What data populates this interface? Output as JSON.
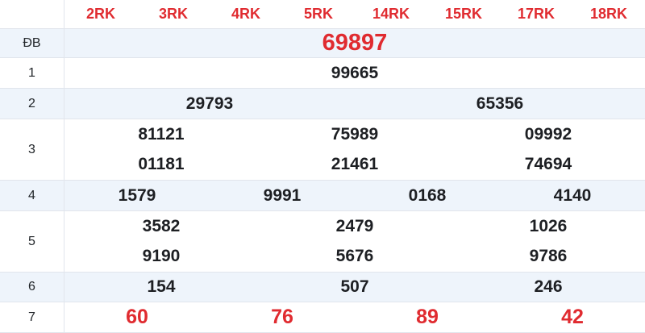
{
  "colors": {
    "accent_red": "#e02b30",
    "row_alt_bg": "#eef4fb",
    "border": "#e1e5ec",
    "text": "#1d1f23"
  },
  "header": {
    "columns": [
      "2RK",
      "3RK",
      "4RK",
      "5RK",
      "14RK",
      "15RK",
      "17RK",
      "18RK"
    ]
  },
  "rows": [
    {
      "label": "ĐB",
      "lines": [
        [
          "69897"
        ]
      ]
    },
    {
      "label": "1",
      "lines": [
        [
          "99665"
        ]
      ]
    },
    {
      "label": "2",
      "lines": [
        [
          "29793",
          "65356"
        ]
      ]
    },
    {
      "label": "3",
      "lines": [
        [
          "81121",
          "75989",
          "09992"
        ],
        [
          "01181",
          "21461",
          "74694"
        ]
      ]
    },
    {
      "label": "4",
      "lines": [
        [
          "1579",
          "9991",
          "0168",
          "4140"
        ]
      ]
    },
    {
      "label": "5",
      "lines": [
        [
          "3582",
          "2479",
          "1026"
        ],
        [
          "9190",
          "5676",
          "9786"
        ]
      ]
    },
    {
      "label": "6",
      "lines": [
        [
          "154",
          "507",
          "246"
        ]
      ]
    },
    {
      "label": "7",
      "lines": [
        [
          "60",
          "76",
          "89",
          "42"
        ]
      ]
    }
  ]
}
